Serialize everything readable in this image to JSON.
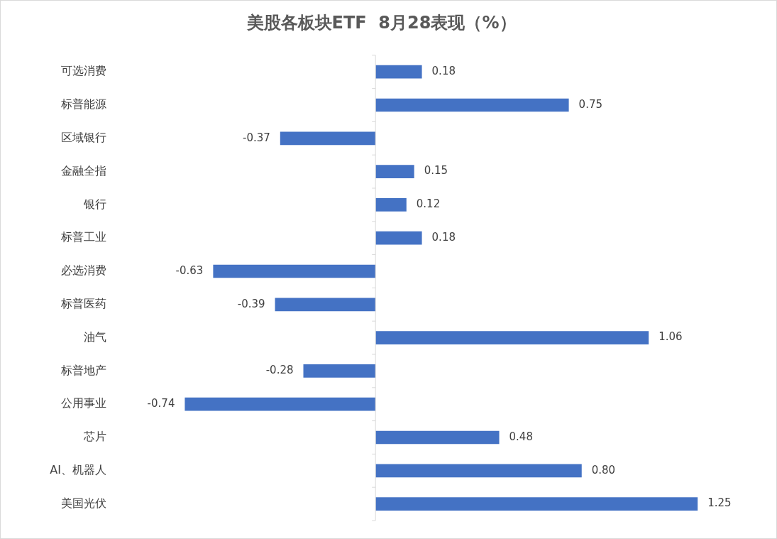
{
  "chart_data": {
    "type": "bar",
    "orientation": "horizontal",
    "title": "美股各板块ETF  8月28表现（%）",
    "categories": [
      "可选消费",
      "标普能源",
      "区域银行",
      "金融全指",
      "银行",
      "标普工业",
      "必选消费",
      "标普医药",
      "油气",
      "标普地产",
      "公用事业",
      "芯片",
      "AI、机器人",
      "美国光伏"
    ],
    "values": [
      0.18,
      0.75,
      -0.37,
      0.15,
      0.12,
      0.18,
      -0.63,
      -0.39,
      1.06,
      -0.28,
      -0.74,
      0.48,
      0.8,
      1.25
    ],
    "value_labels": [
      "0.18",
      "0.75",
      "-0.37",
      "0.15",
      "0.12",
      "0.18",
      "-0.63",
      "-0.39",
      "1.06",
      "-0.28",
      "-0.74",
      "0.48",
      "0.80",
      "1.25"
    ],
    "color": "#4472c4",
    "tick_labels": "y"
  }
}
